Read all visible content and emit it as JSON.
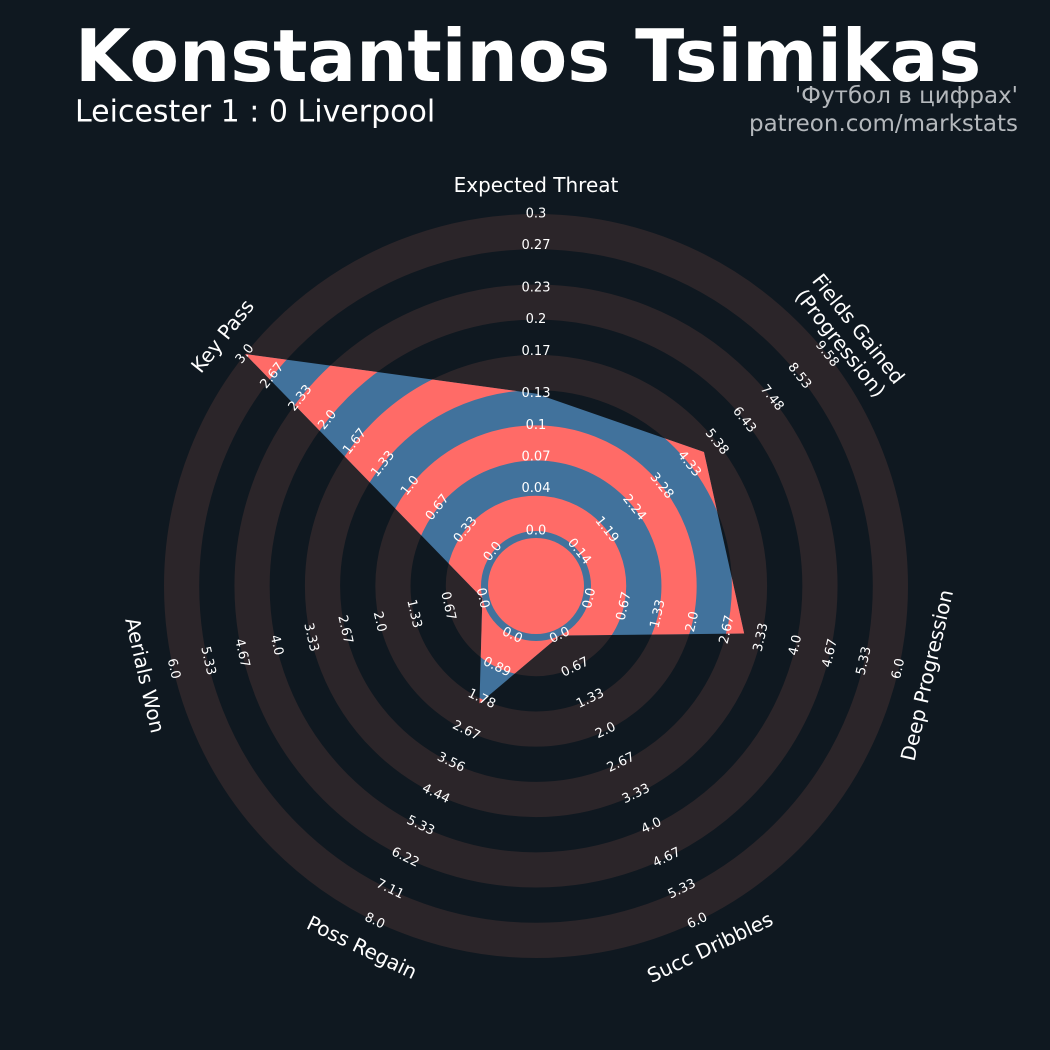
{
  "chart_data": {
    "type": "radar",
    "title": "Konstantinos Tsimikas",
    "subtitle": "Leicester 1 : 0 Liverpool",
    "annotations": [
      "'Футбол в цифрах'",
      "patreon.com/markstats"
    ],
    "categories": [
      "Expected Threat",
      "Fields Gained\n(Progression)",
      "Deep Progression",
      "Succ Dribbles",
      "Poss Regain",
      "Aerials Won",
      "Key Pass"
    ],
    "values": [
      0.13,
      4.9,
      3,
      0,
      1.9,
      0,
      3
    ],
    "axes": [
      {
        "lim": [
          0,
          0.3
        ],
        "ticks": [
          {
            "value": 0,
            "label": "0.0"
          },
          0.04,
          0.07,
          0.1,
          0.13,
          0.17,
          0.2,
          0.23,
          0.27,
          0.3
        ]
      },
      {
        "lim": [
          0.14,
          9.58
        ],
        "ticks": [
          0.14,
          1.19,
          2.24,
          3.28,
          4.33,
          5.38,
          6.43,
          7.48,
          8.53,
          9.58
        ]
      },
      {
        "lim": [
          0,
          6
        ],
        "ticks": [
          {
            "value": 0,
            "label": "0.0"
          },
          0.67,
          1.33,
          {
            "value": 2,
            "label": "2.0"
          },
          2.67,
          3.33,
          {
            "value": 4,
            "label": "4.0"
          },
          4.67,
          5.33,
          {
            "value": 6,
            "label": "6.0"
          }
        ]
      },
      {
        "lim": [
          0,
          6
        ],
        "ticks": [
          {
            "value": 0,
            "label": "0.0"
          },
          0.67,
          1.33,
          {
            "value": 2,
            "label": "2.0"
          },
          2.67,
          3.33,
          {
            "value": 4,
            "label": "4.0"
          },
          4.67,
          5.33,
          {
            "value": 6,
            "label": "6.0"
          }
        ]
      },
      {
        "lim": [
          0,
          8
        ],
        "ticks": [
          {
            "value": 0,
            "label": "0.0"
          },
          0.89,
          1.78,
          2.67,
          3.56,
          4.44,
          5.33,
          6.22,
          7.11,
          {
            "value": 8,
            "label": "8.0"
          }
        ]
      },
      {
        "lim": [
          0,
          6
        ],
        "ticks": [
          {
            "value": 0,
            "label": "0.0"
          },
          0.67,
          1.33,
          {
            "value": 2,
            "label": "2.0"
          },
          2.67,
          3.33,
          {
            "value": 4,
            "label": "4.0"
          },
          4.67,
          5.33,
          {
            "value": 6,
            "label": "6.0"
          }
        ]
      },
      {
        "lim": [
          0,
          3
        ],
        "ticks": [
          {
            "value": 0,
            "label": "0.0"
          },
          0.33,
          0.67,
          {
            "value": 1,
            "label": "1.0"
          },
          1.33,
          1.67,
          {
            "value": 2,
            "label": "2.0"
          },
          2.33,
          2.67,
          {
            "value": 3,
            "label": "3.0"
          }
        ]
      }
    ],
    "fill_color": "#41729c",
    "highlight_color": "#ff6b67",
    "ring_color": "#2b2529",
    "background": "#0f1820"
  }
}
